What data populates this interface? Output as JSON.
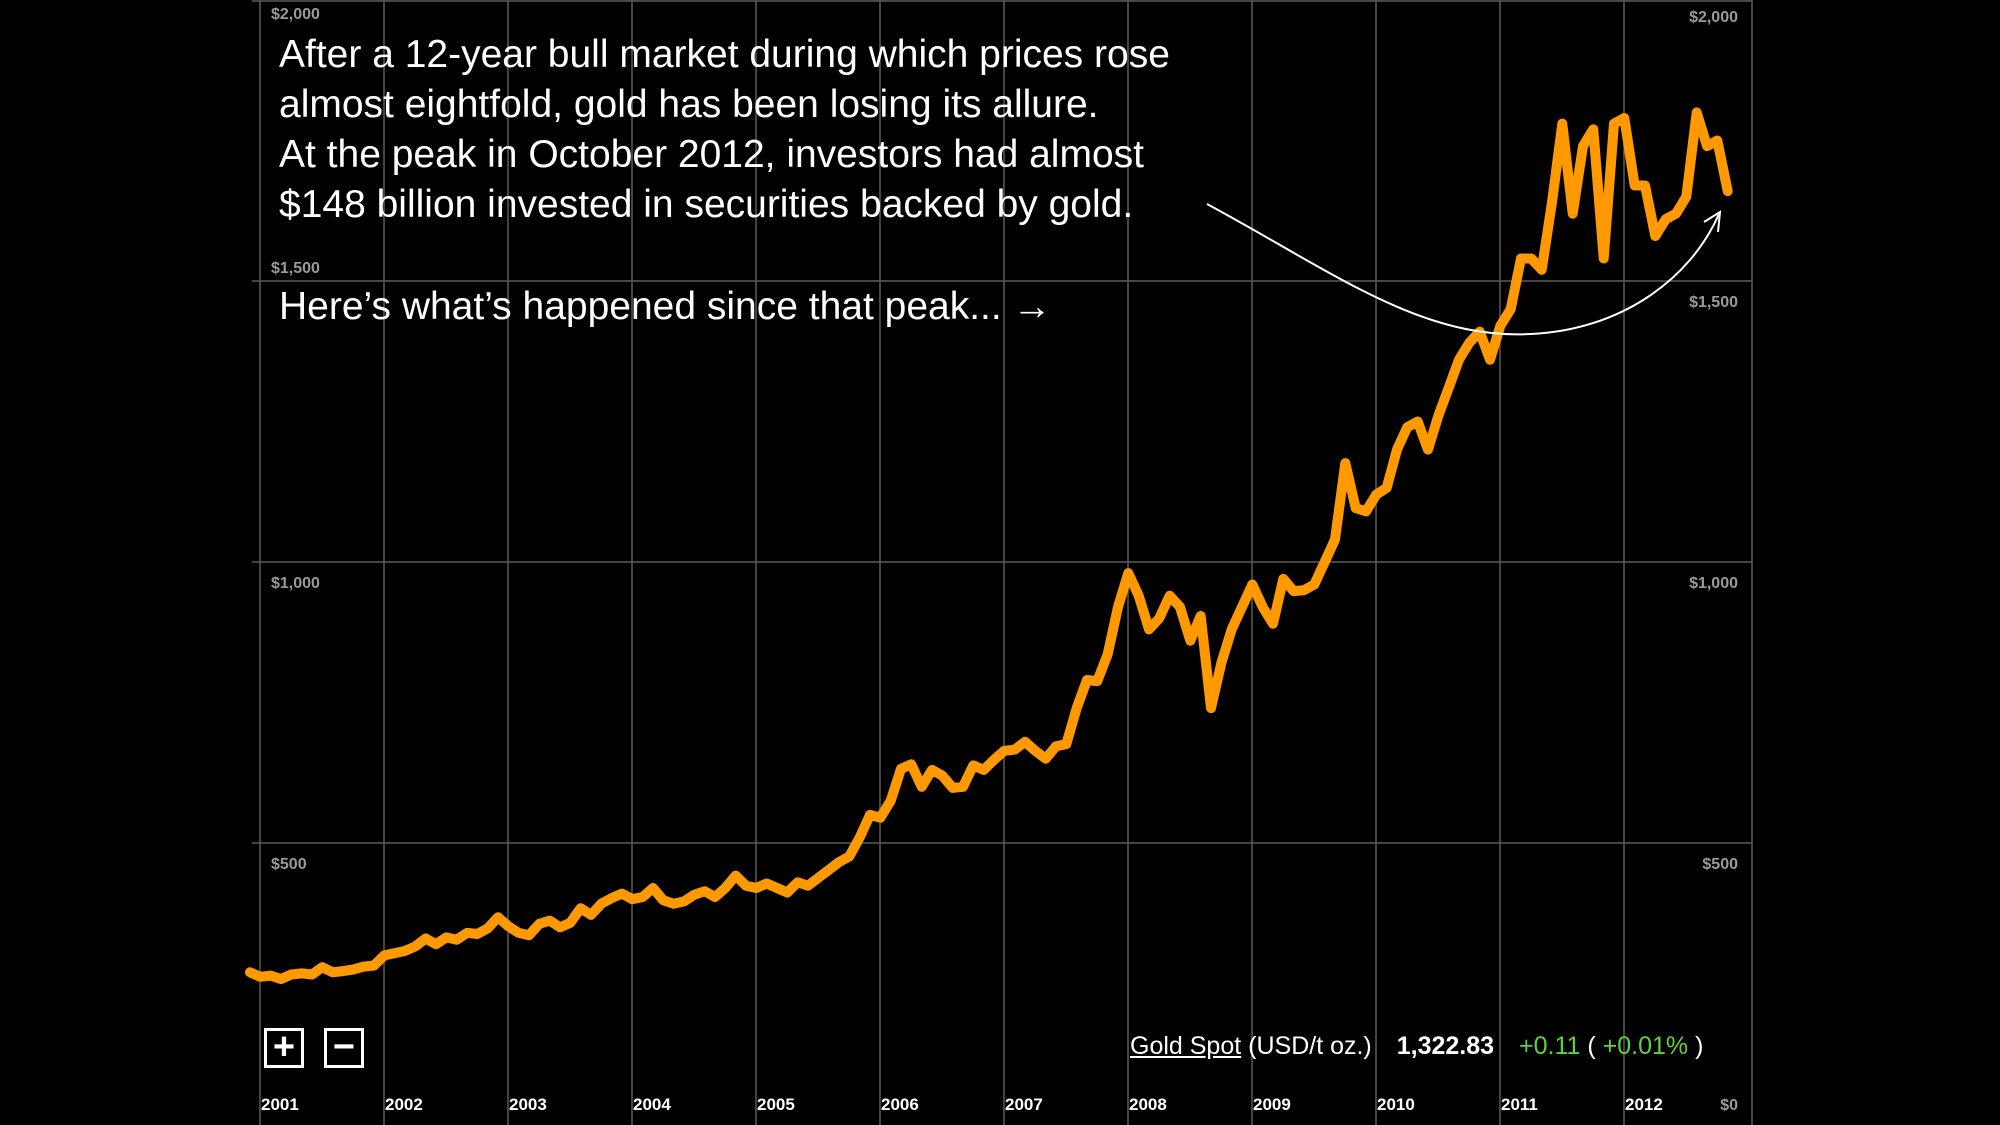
{
  "intro": {
    "lines": [
      "After a 12-year bull market during which prices rose",
      "almost eightfold, gold has been losing its allure.",
      "At the peak in October 2012, investors had almost",
      "$148 billion invested in securities backed by gold."
    ],
    "cta": "Here’s what’s happened since that peak... →"
  },
  "controls": {
    "zoom_in": "+",
    "zoom_out": "−"
  },
  "quote": {
    "name": "Gold Spot",
    "unit": "(USD/t oz.)",
    "price": "1,322.83",
    "change": "+0.11",
    "open_paren": "(",
    "change_pct": "+0.01%",
    "close_paren": ")"
  },
  "colors": {
    "line": "#ff9900",
    "grid": "#5a5a5a",
    "positive": "#5fd13b"
  },
  "chart_data": {
    "type": "line",
    "title": "Gold Spot (USD/t oz.)",
    "xlabel": "",
    "ylabel": "",
    "ylim": [
      0,
      2000
    ],
    "xlim": [
      2001,
      2013
    ],
    "grid": true,
    "y_ticks": [
      {
        "value": 2000,
        "label": "$2,000"
      },
      {
        "value": 1500,
        "label": "$1,500"
      },
      {
        "value": 1000,
        "label": "$1,000"
      },
      {
        "value": 500,
        "label": "$500"
      },
      {
        "value": 0,
        "label": "$0"
      }
    ],
    "x_ticks": [
      "2001",
      "2002",
      "2003",
      "2004",
      "2005",
      "2006",
      "2007",
      "2008",
      "2009",
      "2010",
      "2011",
      "2012"
    ],
    "series": [
      {
        "name": "Gold Spot",
        "start_year": 2001,
        "frequency": "monthly",
        "values": [
          270,
          262,
          264,
          258,
          266,
          268,
          266,
          279,
          270,
          272,
          275,
          280,
          282,
          300,
          304,
          308,
          316,
          330,
          320,
          332,
          328,
          340,
          338,
          348,
          368,
          352,
          340,
          336,
          356,
          362,
          350,
          358,
          384,
          372,
          392,
          402,
          410,
          400,
          404,
          420,
          398,
          392,
          396,
          408,
          414,
          404,
          420,
          442,
          424,
          420,
          428,
          420,
          412,
          430,
          424,
          438,
          452,
          466,
          476,
          510,
          550,
          545,
          575,
          632,
          640,
          600,
          630,
          620,
          598,
          600,
          638,
          630,
          648,
          664,
          666,
          680,
          664,
          650,
          672,
          676,
          740,
          790,
          788,
          836,
          920,
          980,
          940,
          880,
          900,
          940,
          920,
          860,
          904,
          740,
          820,
          880,
          920,
          960,
          920,
          890,
          970,
          948,
          950,
          960,
          1000,
          1040,
          1176,
          1096,
          1090,
          1120,
          1132,
          1200,
          1240,
          1250,
          1200,
          1260,
          1310,
          1360,
          1390,
          1410,
          1360,
          1420,
          1450,
          1540,
          1540,
          1520,
          1640,
          1780,
          1620,
          1740,
          1770,
          1540,
          1780,
          1790,
          1670,
          1670,
          1580,
          1610,
          1620,
          1650,
          1800,
          1740,
          1750,
          1660
        ]
      }
    ],
    "annotation": "curved arrow from intro text to October 2012 peak"
  }
}
